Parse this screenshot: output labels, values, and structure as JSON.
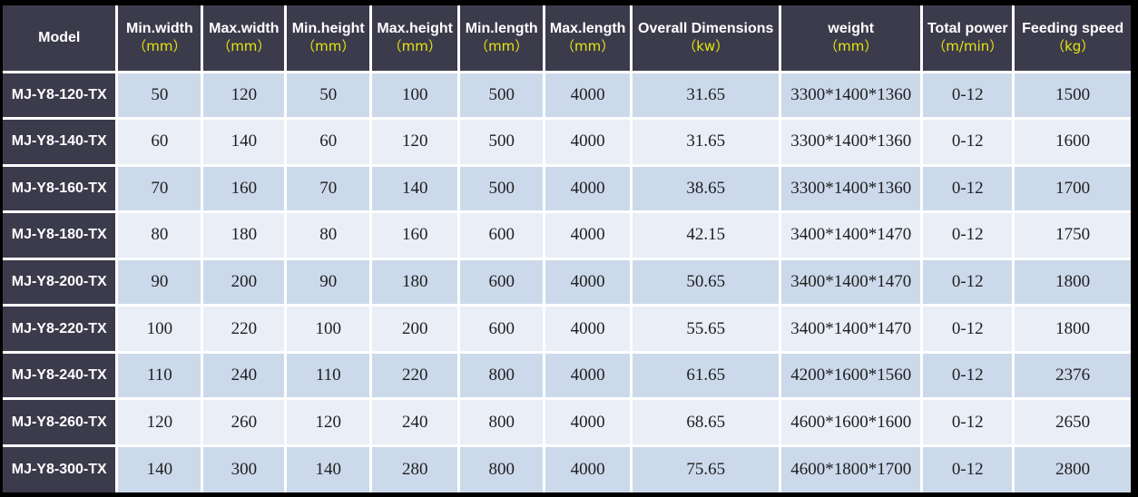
{
  "colors": {
    "header_bg": "#3b3b4c",
    "unit_text": "#e7e410",
    "row_odd": "#ccd9eb",
    "row_even": "#e9eef7",
    "grid": "#ffffff",
    "frame": "#000000",
    "data_text": "#1f1f1f",
    "header_text": "#ffffff"
  },
  "chart_data": {
    "type": "table",
    "title": "Machine model specification table",
    "columns": [
      {
        "label": "Model",
        "unit": ""
      },
      {
        "label": "Min.width",
        "unit": "（mm）"
      },
      {
        "label": "Max.width",
        "unit": "（mm）"
      },
      {
        "label": "Min.height",
        "unit": "（mm）"
      },
      {
        "label": "Max.height",
        "unit": "（mm）"
      },
      {
        "label": "Min.length",
        "unit": "（mm）"
      },
      {
        "label": "Max.length",
        "unit": "（mm）"
      },
      {
        "label": "Overall Dimensions",
        "unit": "（kw）"
      },
      {
        "label": "weight",
        "unit": "（mm）"
      },
      {
        "label": "Total power",
        "unit": "（m/min）"
      },
      {
        "label": "Feeding speed",
        "unit": "（kg）"
      }
    ],
    "rows": [
      {
        "model": "MJ-Y8-120-TX",
        "values": [
          "50",
          "120",
          "50",
          "100",
          "500",
          "4000",
          "31.65",
          "3300*1400*1360",
          "0-12",
          "1500"
        ]
      },
      {
        "model": "MJ-Y8-140-TX",
        "values": [
          "60",
          "140",
          "60",
          "120",
          "500",
          "4000",
          "31.65",
          "3300*1400*1360",
          "0-12",
          "1600"
        ]
      },
      {
        "model": "MJ-Y8-160-TX",
        "values": [
          "70",
          "160",
          "70",
          "140",
          "500",
          "4000",
          "38.65",
          "3300*1400*1360",
          "0-12",
          "1700"
        ]
      },
      {
        "model": "MJ-Y8-180-TX",
        "values": [
          "80",
          "180",
          "80",
          "160",
          "600",
          "4000",
          "42.15",
          "3400*1400*1470",
          "0-12",
          "1750"
        ]
      },
      {
        "model": "MJ-Y8-200-TX",
        "values": [
          "90",
          "200",
          "90",
          "180",
          "600",
          "4000",
          "50.65",
          "3400*1400*1470",
          "0-12",
          "1800"
        ]
      },
      {
        "model": "MJ-Y8-220-TX",
        "values": [
          "100",
          "220",
          "100",
          "200",
          "600",
          "4000",
          "55.65",
          "3400*1400*1470",
          "0-12",
          "1800"
        ]
      },
      {
        "model": "MJ-Y8-240-TX",
        "values": [
          "110",
          "240",
          "110",
          "220",
          "800",
          "4000",
          "61.65",
          "4200*1600*1560",
          "0-12",
          "2376"
        ]
      },
      {
        "model": "MJ-Y8-260-TX",
        "values": [
          "120",
          "260",
          "120",
          "240",
          "800",
          "4000",
          "68.65",
          "4600*1600*1600",
          "0-12",
          "2650"
        ]
      },
      {
        "model": "MJ-Y8-300-TX",
        "values": [
          "140",
          "300",
          "140",
          "280",
          "800",
          "4000",
          "75.65",
          "4600*1800*1700",
          "0-12",
          "2800"
        ]
      }
    ]
  }
}
